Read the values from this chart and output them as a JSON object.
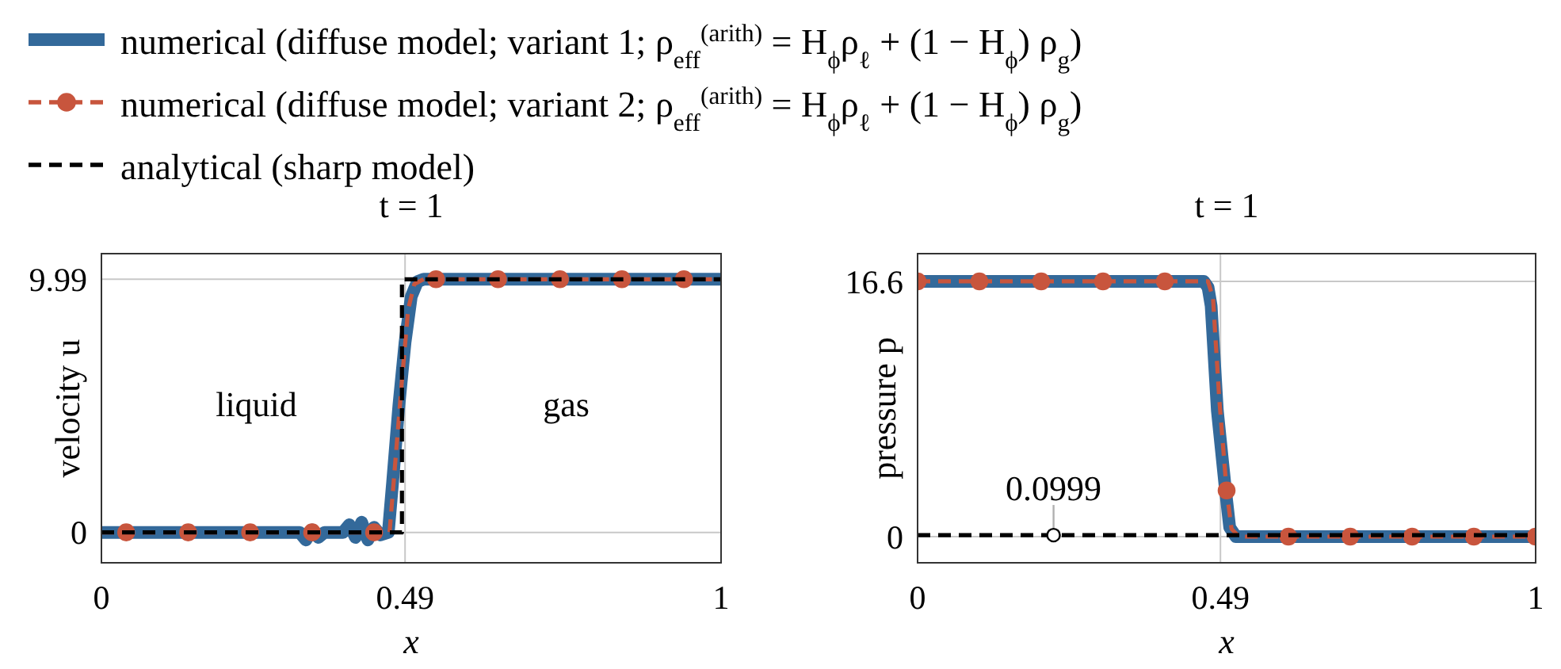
{
  "chart_data": [
    {
      "type": "line",
      "title": "t = 1",
      "xlabel": "x",
      "ylabel": "velocity u",
      "xlim": [
        0,
        1
      ],
      "xticks": [
        0,
        0.49,
        1
      ],
      "ylim": [
        -1.2,
        11.0
      ],
      "yticks": [
        0,
        9.99
      ],
      "grid": true,
      "legend": "top",
      "series": [
        {
          "type": "line",
          "name": "numerical (diffuse model; variant 1; ρ$_{eff}$$^{(arith)}$ = H$_{ϕ}$ρ$_{ℓ}$ + (1 − H$_{ϕ}$) ρ$_{g}$)",
          "color": "#33699a",
          "line_style": "solid",
          "x": [
            0,
            0.32,
            0.33,
            0.34,
            0.35,
            0.36,
            0.39,
            0.4,
            0.41,
            0.42,
            0.43,
            0.44,
            0.45,
            0.463,
            0.47,
            0.48,
            0.49,
            0.5,
            0.51,
            0.52,
            1
          ],
          "values": [
            0,
            0,
            -0.3,
            0.1,
            -0.2,
            0,
            0,
            0.3,
            -0.2,
            0.4,
            -0.3,
            0.2,
            -0.1,
            0,
            2,
            5,
            7.5,
            9.3,
            9.9,
            9.99,
            9.99
          ]
        },
        {
          "type": "line",
          "name": "numerical (diffuse model; variant 2; ρ$_{eff}$$^{(arith)}$ = H$_{ϕ}$ρ$_{ℓ}$ + (1 − H$_{ϕ}$) ρ$_{g}$)",
          "color": "#c8553d",
          "line_style": "dashed",
          "x": [
            0,
            0.44,
            0.465,
            0.475,
            0.485,
            0.495,
            0.505,
            0.52,
            1
          ],
          "values": [
            0,
            0,
            0,
            3,
            6,
            8.8,
            9.8,
            9.99,
            9.99
          ]
        },
        {
          "type": "scatter",
          "color": "#c8553d",
          "marker": "circle",
          "x": [
            0.04,
            0.14,
            0.24,
            0.34,
            0.44,
            0.54,
            0.64,
            0.74,
            0.84,
            0.94
          ],
          "values": [
            0,
            0,
            0,
            0,
            0,
            9.99,
            9.99,
            9.99,
            9.99,
            9.99
          ]
        },
        {
          "type": "line",
          "name": "analytical (sharp model)",
          "color": "#000000",
          "line_style": "dashed",
          "x": [
            0,
            0.485,
            0.485,
            1
          ],
          "values": [
            0,
            0,
            9.99,
            9.99
          ]
        }
      ],
      "annotations": [
        "liquid",
        "gas"
      ]
    },
    {
      "type": "line",
      "title": "t = 1",
      "xlabel": "x",
      "ylabel": "pressure p",
      "xlim": [
        0,
        1
      ],
      "xticks": [
        0,
        0.49,
        1
      ],
      "ylim": [
        -1.7,
        18.4
      ],
      "yticks": [
        0,
        16.6
      ],
      "grid": true,
      "series": [
        {
          "type": "line",
          "color": "#33699a",
          "line_style": "solid",
          "x": [
            0,
            0.463,
            0.47,
            0.475,
            0.485,
            0.498,
            0.505,
            0.515,
            1
          ],
          "values": [
            16.6,
            16.6,
            16.2,
            15,
            8.2,
            3.1,
            0.6,
            0,
            0
          ]
        },
        {
          "type": "line",
          "color": "#c8553d",
          "line_style": "dashed",
          "x": [
            0,
            0.47,
            0.478,
            0.488,
            0.5,
            0.508,
            0.52,
            1
          ],
          "values": [
            16.6,
            16.6,
            15.5,
            9,
            3,
            0.5,
            0,
            0
          ]
        },
        {
          "type": "scatter",
          "color": "#c8553d",
          "marker": "circle",
          "x": [
            0,
            0.1,
            0.2,
            0.3,
            0.4,
            0.5,
            0.6,
            0.7,
            0.8,
            0.9,
            1
          ],
          "values": [
            16.6,
            16.6,
            16.6,
            16.6,
            16.6,
            3,
            0,
            0,
            0,
            0,
            0
          ]
        },
        {
          "type": "line",
          "color": "#000000",
          "line_style": "dashed",
          "x": [
            0,
            1
          ],
          "values": [
            0.0999,
            0.0999
          ]
        }
      ],
      "annotations": [
        {
          "text": "0.0999",
          "x": 0.22,
          "y": 0.0999
        }
      ]
    }
  ]
}
